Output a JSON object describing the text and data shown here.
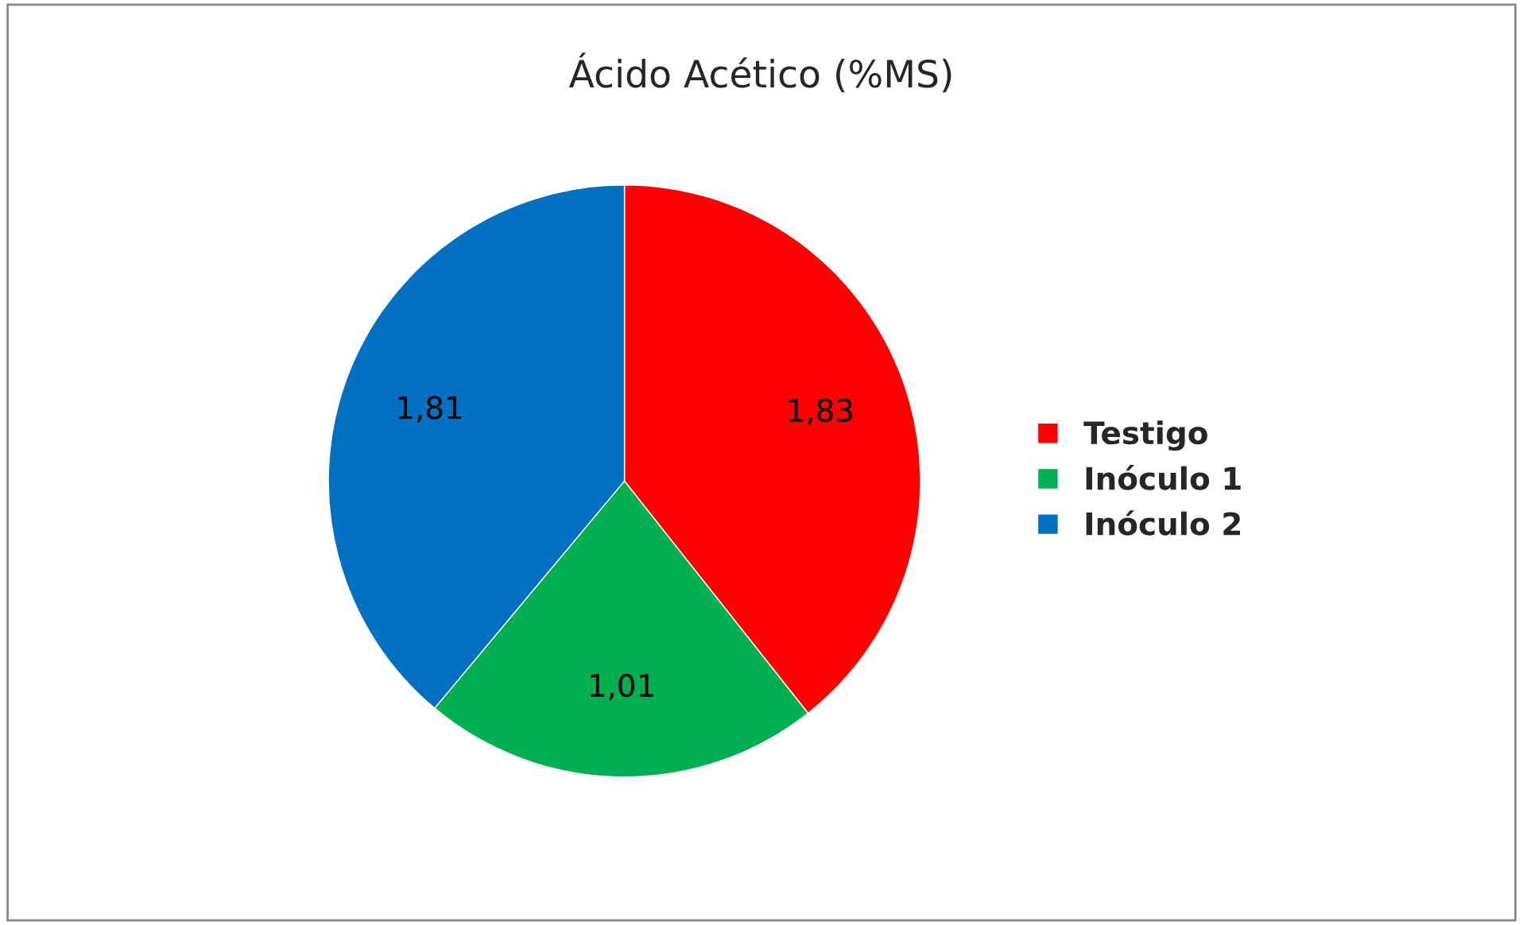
{
  "chart_data": {
    "type": "pie",
    "title": "Ácido Acético (%MS)",
    "categories": [
      "Testigo",
      "Inóculo 1",
      "Inóculo 2"
    ],
    "values": [
      1.83,
      1.01,
      1.81
    ],
    "colors": [
      "#ff0000",
      "#00b050",
      "#0070c0"
    ],
    "value_labels": [
      "1,83",
      "1,01",
      "1,81"
    ],
    "legend": "right"
  }
}
